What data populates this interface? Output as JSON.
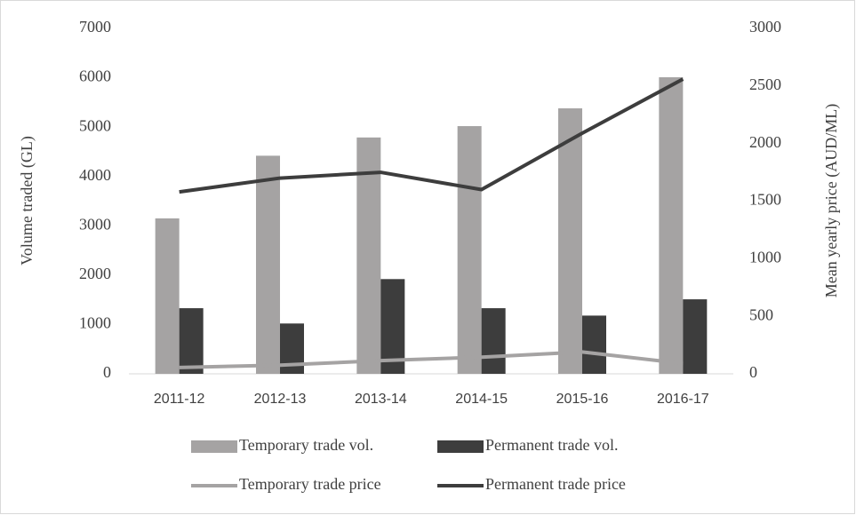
{
  "chart_data": {
    "type": "combo",
    "categories": [
      "2011-12",
      "2012-13",
      "2013-14",
      "2014-15",
      "2015-16",
      "2016-17"
    ],
    "y_label": "Volume traded (GL)",
    "y2_label": "Mean yearly price (AUD/ML)",
    "ylim": [
      0,
      7000
    ],
    "yticks": [
      0,
      1000,
      2000,
      3000,
      4000,
      5000,
      6000,
      7000
    ],
    "y2lim": [
      0,
      3000
    ],
    "y2ticks": [
      0,
      500,
      1000,
      1500,
      2000,
      2500,
      3000
    ],
    "grid": false,
    "legend": "bottom",
    "series": [
      {
        "name": "Temporary trade vol.",
        "type": "bar",
        "color": "#a5a3a3",
        "values": [
          3150,
          4420,
          4790,
          5020,
          5380,
          6010
        ]
      },
      {
        "name": "Permanent trade vol.",
        "type": "bar",
        "color": "#3d3d3d",
        "values": [
          1330,
          1020,
          1920,
          1330,
          1180,
          1510
        ]
      },
      {
        "name": "Temporary trade price",
        "type": "line",
        "axis": "y2",
        "color": "#a5a3a3",
        "values": [
          55,
          75,
          115,
          145,
          190,
          90
        ]
      },
      {
        "name": "Permanent trade price",
        "type": "line",
        "axis": "y2",
        "color": "#3d3d3d",
        "values": [
          1580,
          1700,
          1750,
          1600,
          2090,
          2560
        ]
      }
    ]
  }
}
